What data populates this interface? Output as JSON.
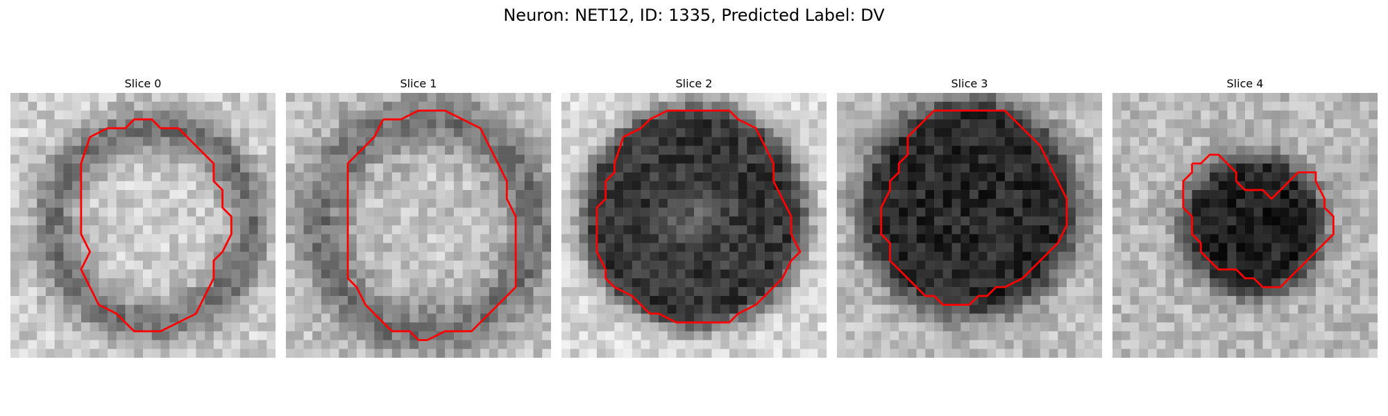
{
  "figure": {
    "title": "Neuron: NET12, ID: 1335, Predicted Label: DV"
  },
  "panels": [
    {
      "title": "Slice 0",
      "tone": "light-ring"
    },
    {
      "title": "Slice 1",
      "tone": "light-center"
    },
    {
      "title": "Slice 2",
      "tone": "dark-ring"
    },
    {
      "title": "Slice 3",
      "tone": "dark-blob"
    },
    {
      "title": "Slice 4",
      "tone": "small-dark"
    }
  ],
  "colors": {
    "contour": "#ff0000",
    "background": "#ffffff"
  }
}
